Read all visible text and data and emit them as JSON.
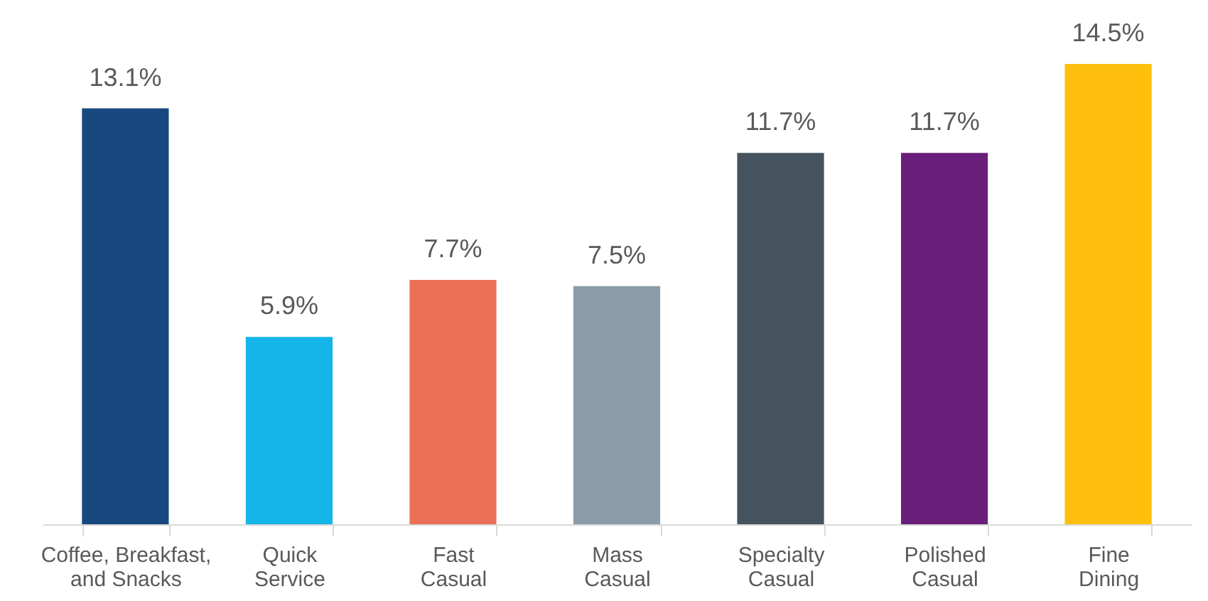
{
  "chart_data": {
    "type": "bar",
    "categories": [
      "Coffee, Breakfast,\nand Snacks",
      "Quick\nService",
      "Fast\nCasual",
      "Mass\nCasual",
      "Specialty\nCasual",
      "Polished\nCasual",
      "Fine\nDining"
    ],
    "values": [
      13.1,
      5.9,
      7.7,
      7.5,
      11.7,
      11.7,
      14.5
    ],
    "value_labels": [
      "13.1%",
      "5.9%",
      "7.7%",
      "7.5%",
      "11.7%",
      "11.7%",
      "14.5%"
    ],
    "colors": [
      "#17497e",
      "#14b5e8",
      "#ec6f57",
      "#8a9ca8",
      "#44535e",
      "#6a1f7a",
      "#fdbf0b"
    ],
    "grid": false
  }
}
